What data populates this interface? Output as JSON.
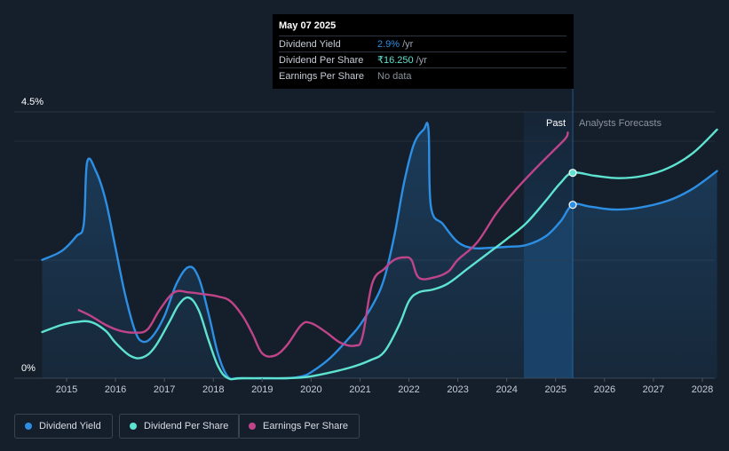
{
  "tooltip": {
    "date": "May 07 2025",
    "rows": [
      {
        "label": "Dividend Yield",
        "value": "2.9%",
        "unit": "/yr",
        "color": "#2d8fe3"
      },
      {
        "label": "Dividend Per Share",
        "value": "₹16.250",
        "unit": "/yr",
        "color": "#5ee3d0"
      },
      {
        "label": "Earnings Per Share",
        "value": "No data",
        "unit": "",
        "color": "#8a929d"
      }
    ]
  },
  "legend": [
    {
      "label": "Dividend Yield",
      "color": "#2d8fe3"
    },
    {
      "label": "Dividend Per Share",
      "color": "#5ee3d0"
    },
    {
      "label": "Earnings Per Share",
      "color": "#c0448a"
    }
  ],
  "chart_data": {
    "type": "line",
    "y_tick_labels": [
      {
        "label": "4.5%",
        "value": 4.5
      },
      {
        "label": "0%",
        "value": 0
      }
    ],
    "ylim": [
      0,
      4.5
    ],
    "xlim": [
      2014.5,
      2028.3
    ],
    "x_ticks": [
      2015,
      2016,
      2017,
      2018,
      2019,
      2020,
      2021,
      2022,
      2023,
      2024,
      2025,
      2026,
      2027,
      2028
    ],
    "past_label": "Past",
    "forecast_label": "Analysts Forecasts",
    "past_band": [
      2024.35,
      2025.35
    ],
    "divider_x": 2025.35,
    "series": [
      {
        "name": "Dividend Yield",
        "color": "#2d8fe3",
        "fill": true,
        "points": [
          [
            2014.5,
            2.0
          ],
          [
            2014.9,
            2.15
          ],
          [
            2015.2,
            2.4
          ],
          [
            2015.35,
            2.6
          ],
          [
            2015.42,
            3.65
          ],
          [
            2015.6,
            3.5
          ],
          [
            2015.8,
            3.0
          ],
          [
            2016.0,
            2.2
          ],
          [
            2016.2,
            1.4
          ],
          [
            2016.4,
            0.8
          ],
          [
            2016.55,
            0.62
          ],
          [
            2016.75,
            0.7
          ],
          [
            2017.0,
            1.05
          ],
          [
            2017.25,
            1.6
          ],
          [
            2017.5,
            1.88
          ],
          [
            2017.7,
            1.7
          ],
          [
            2017.9,
            1.1
          ],
          [
            2018.1,
            0.4
          ],
          [
            2018.3,
            0.02
          ],
          [
            2018.5,
            0
          ],
          [
            2019.0,
            0
          ],
          [
            2019.5,
            0
          ],
          [
            2019.8,
            0.03
          ],
          [
            2020.0,
            0.1
          ],
          [
            2020.4,
            0.35
          ],
          [
            2020.8,
            0.7
          ],
          [
            2021.0,
            0.9
          ],
          [
            2021.3,
            1.3
          ],
          [
            2021.5,
            1.7
          ],
          [
            2021.7,
            2.4
          ],
          [
            2021.9,
            3.3
          ],
          [
            2022.1,
            3.95
          ],
          [
            2022.3,
            4.2
          ],
          [
            2022.4,
            4.2
          ],
          [
            2022.45,
            2.9
          ],
          [
            2022.7,
            2.6
          ],
          [
            2023.0,
            2.3
          ],
          [
            2023.3,
            2.2
          ],
          [
            2023.6,
            2.2
          ],
          [
            2024.0,
            2.22
          ],
          [
            2024.4,
            2.25
          ],
          [
            2024.8,
            2.4
          ],
          [
            2025.1,
            2.65
          ],
          [
            2025.35,
            2.93
          ],
          [
            2025.7,
            2.9
          ],
          [
            2026.2,
            2.85
          ],
          [
            2026.7,
            2.88
          ],
          [
            2027.3,
            3.0
          ],
          [
            2027.8,
            3.2
          ],
          [
            2028.3,
            3.5
          ]
        ]
      },
      {
        "name": "Dividend Per Share",
        "color": "#5ee3d0",
        "fill": false,
        "points": [
          [
            2014.5,
            0.78
          ],
          [
            2014.9,
            0.9
          ],
          [
            2015.2,
            0.95
          ],
          [
            2015.5,
            0.95
          ],
          [
            2015.8,
            0.8
          ],
          [
            2016.0,
            0.6
          ],
          [
            2016.3,
            0.38
          ],
          [
            2016.55,
            0.35
          ],
          [
            2016.8,
            0.52
          ],
          [
            2017.1,
            0.95
          ],
          [
            2017.3,
            1.25
          ],
          [
            2017.5,
            1.36
          ],
          [
            2017.7,
            1.15
          ],
          [
            2017.9,
            0.65
          ],
          [
            2018.1,
            0.2
          ],
          [
            2018.3,
            0
          ],
          [
            2018.6,
            0
          ],
          [
            2019.5,
            0
          ],
          [
            2019.9,
            0.02
          ],
          [
            2020.3,
            0.08
          ],
          [
            2020.8,
            0.18
          ],
          [
            2021.2,
            0.3
          ],
          [
            2021.5,
            0.45
          ],
          [
            2021.8,
            0.9
          ],
          [
            2022.0,
            1.3
          ],
          [
            2022.2,
            1.45
          ],
          [
            2022.5,
            1.5
          ],
          [
            2022.8,
            1.6
          ],
          [
            2023.2,
            1.85
          ],
          [
            2023.6,
            2.1
          ],
          [
            2024.0,
            2.35
          ],
          [
            2024.4,
            2.62
          ],
          [
            2024.8,
            3.0
          ],
          [
            2025.1,
            3.3
          ],
          [
            2025.35,
            3.47
          ],
          [
            2025.8,
            3.42
          ],
          [
            2026.3,
            3.38
          ],
          [
            2026.8,
            3.42
          ],
          [
            2027.3,
            3.55
          ],
          [
            2027.8,
            3.8
          ],
          [
            2028.3,
            4.2
          ]
        ]
      },
      {
        "name": "Earnings Per Share",
        "color": "#c0448a",
        "fill": false,
        "points": [
          [
            2015.25,
            1.15
          ],
          [
            2015.5,
            1.05
          ],
          [
            2015.8,
            0.9
          ],
          [
            2016.1,
            0.8
          ],
          [
            2016.4,
            0.77
          ],
          [
            2016.65,
            0.82
          ],
          [
            2016.9,
            1.15
          ],
          [
            2017.2,
            1.45
          ],
          [
            2017.5,
            1.45
          ],
          [
            2017.8,
            1.42
          ],
          [
            2018.1,
            1.38
          ],
          [
            2018.35,
            1.3
          ],
          [
            2018.6,
            1.05
          ],
          [
            2018.8,
            0.75
          ],
          [
            2019.0,
            0.42
          ],
          [
            2019.25,
            0.38
          ],
          [
            2019.5,
            0.55
          ],
          [
            2019.8,
            0.9
          ],
          [
            2020.0,
            0.93
          ],
          [
            2020.3,
            0.78
          ],
          [
            2020.6,
            0.6
          ],
          [
            2020.9,
            0.55
          ],
          [
            2021.05,
            0.7
          ],
          [
            2021.25,
            1.6
          ],
          [
            2021.5,
            1.85
          ],
          [
            2021.7,
            2.0
          ],
          [
            2021.9,
            2.04
          ],
          [
            2022.05,
            2.0
          ],
          [
            2022.2,
            1.7
          ],
          [
            2022.5,
            1.7
          ],
          [
            2022.8,
            1.8
          ],
          [
            2023.0,
            2.0
          ],
          [
            2023.4,
            2.3
          ],
          [
            2023.8,
            2.8
          ],
          [
            2024.2,
            3.2
          ],
          [
            2024.6,
            3.55
          ],
          [
            2024.9,
            3.8
          ],
          [
            2025.2,
            4.05
          ],
          [
            2025.25,
            4.15
          ]
        ]
      }
    ],
    "markers": [
      {
        "series": "Dividend Yield",
        "x": 2025.35,
        "y": 2.93
      },
      {
        "series": "Dividend Per Share",
        "x": 2025.35,
        "y": 3.47
      }
    ]
  }
}
